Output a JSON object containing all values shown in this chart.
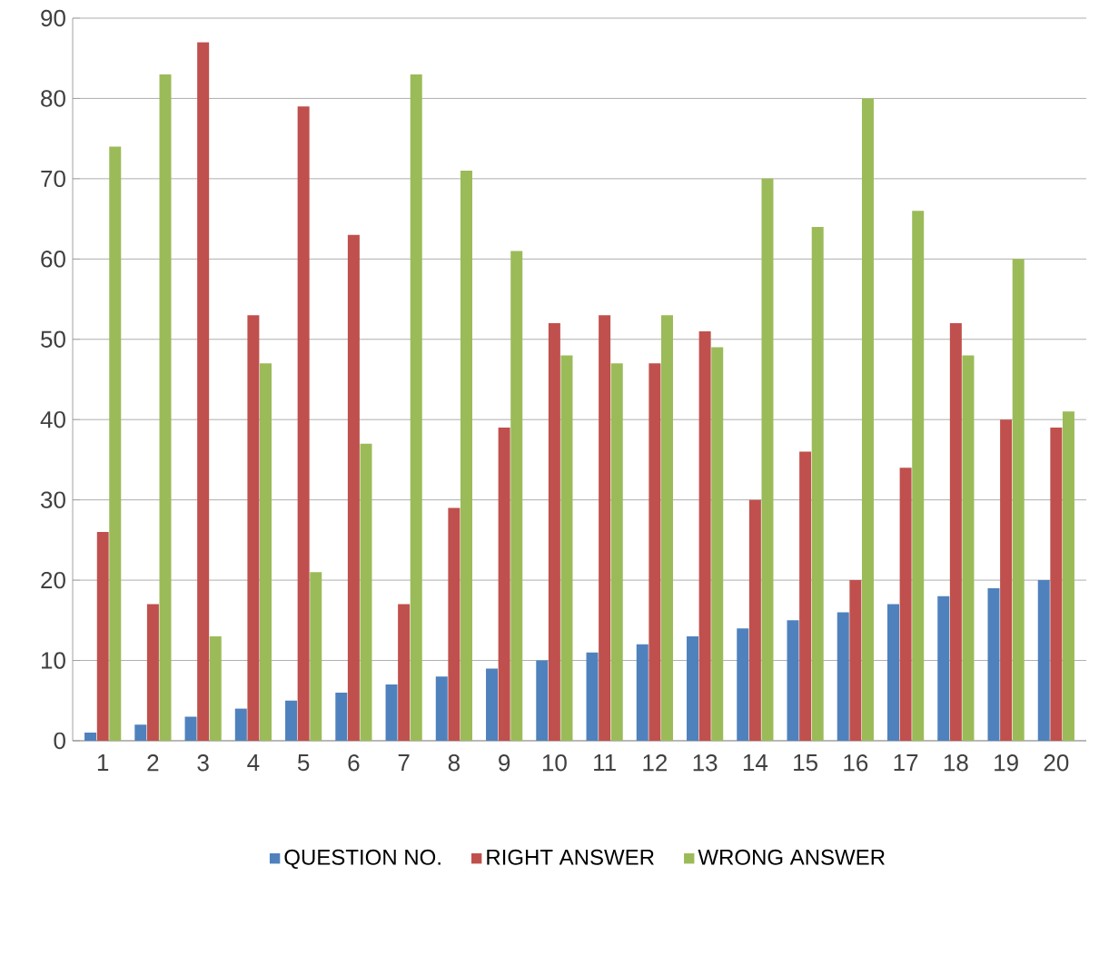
{
  "chart_data": {
    "type": "bar",
    "categories": [
      "1",
      "2",
      "3",
      "4",
      "5",
      "6",
      "7",
      "8",
      "9",
      "10",
      "11",
      "12",
      "13",
      "14",
      "15",
      "16",
      "17",
      "18",
      "19",
      "20"
    ],
    "series": [
      {
        "name": "QUESTION NO.",
        "color": "#4f81bd",
        "values": [
          1,
          2,
          3,
          4,
          5,
          6,
          7,
          8,
          9,
          10,
          11,
          12,
          13,
          14,
          15,
          16,
          17,
          18,
          19,
          20
        ]
      },
      {
        "name": "RIGHT ANSWER",
        "color": "#c0504d",
        "values": [
          26,
          17,
          87,
          53,
          79,
          63,
          17,
          29,
          39,
          52,
          53,
          47,
          51,
          30,
          36,
          20,
          34,
          52,
          40,
          39
        ]
      },
      {
        "name": "WRONG ANSWER",
        "color": "#9bbb59",
        "values": [
          74,
          83,
          13,
          47,
          21,
          37,
          83,
          71,
          61,
          48,
          47,
          53,
          49,
          70,
          64,
          80,
          66,
          48,
          60,
          41
        ]
      }
    ],
    "ylim": [
      0,
      90
    ],
    "yticks": [
      0,
      10,
      20,
      30,
      40,
      50,
      60,
      70,
      80,
      90
    ],
    "grid": "y",
    "legend": "bottom"
  }
}
